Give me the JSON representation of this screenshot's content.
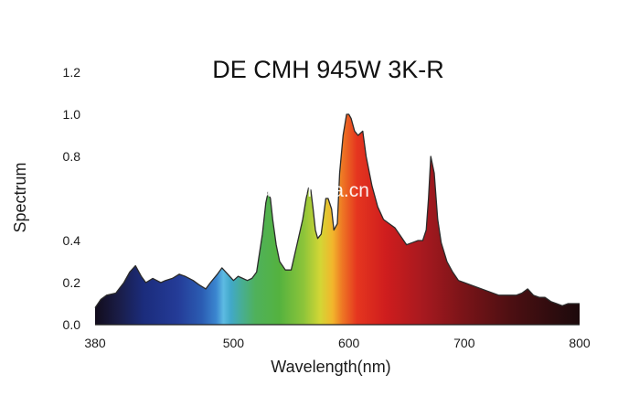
{
  "chart_data": {
    "type": "area",
    "title": "DE CMH 945W 3K-R",
    "xlabel": "Wavelength(nm)",
    "ylabel": "Spectrum",
    "xlim": [
      380,
      800
    ],
    "ylim": [
      0,
      1.2
    ],
    "xticks": [
      "380",
      "500",
      "600",
      "700",
      "800"
    ],
    "xtick_values": [
      380,
      500,
      600,
      700,
      800
    ],
    "yticks": [
      "0.0",
      "0.2",
      "0.4",
      "0.8",
      "1.0",
      "1.2"
    ],
    "ytick_values": [
      0.0,
      0.2,
      0.4,
      0.8,
      1.0,
      1.2
    ],
    "grid": false,
    "fill": "wavelength-spectrum gradient",
    "series": [
      {
        "x": [
          380,
          385,
          390,
          398,
          405,
          410,
          415,
          420,
          424,
          430,
          437,
          441,
          447,
          453,
          458,
          465,
          470,
          476,
          480,
          486,
          490,
          495,
          500,
          504,
          508,
          512,
          516,
          520,
          525,
          528,
          530,
          532,
          534,
          537,
          540,
          545,
          550,
          555,
          560,
          563,
          565,
          567,
          569,
          571,
          573,
          576,
          580,
          582,
          585,
          587,
          590,
          592,
          595,
          598,
          600,
          602,
          605,
          608,
          612,
          615,
          620,
          625,
          630,
          635,
          640,
          645,
          650,
          655,
          660,
          664,
          667,
          669,
          671,
          674,
          677,
          680,
          685,
          690,
          695,
          700,
          710,
          720,
          730,
          740,
          745,
          750,
          755,
          760,
          765,
          770,
          775,
          780,
          785,
          790,
          795,
          800
        ],
        "y": [
          0.08,
          0.12,
          0.14,
          0.15,
          0.2,
          0.25,
          0.28,
          0.23,
          0.2,
          0.22,
          0.2,
          0.21,
          0.22,
          0.24,
          0.23,
          0.21,
          0.19,
          0.17,
          0.2,
          0.24,
          0.27,
          0.24,
          0.21,
          0.23,
          0.22,
          0.21,
          0.22,
          0.25,
          0.43,
          0.58,
          0.63,
          0.6,
          0.5,
          0.38,
          0.3,
          0.26,
          0.26,
          0.38,
          0.5,
          0.6,
          0.65,
          0.64,
          0.55,
          0.45,
          0.41,
          0.43,
          0.6,
          0.6,
          0.55,
          0.45,
          0.48,
          0.72,
          0.9,
          1.0,
          1.0,
          0.98,
          0.92,
          0.9,
          0.92,
          0.8,
          0.66,
          0.56,
          0.5,
          0.48,
          0.46,
          0.42,
          0.38,
          0.39,
          0.4,
          0.4,
          0.45,
          0.6,
          0.8,
          0.72,
          0.5,
          0.39,
          0.3,
          0.25,
          0.21,
          0.2,
          0.18,
          0.16,
          0.14,
          0.14,
          0.14,
          0.15,
          0.17,
          0.14,
          0.13,
          0.13,
          0.11,
          0.1,
          0.09,
          0.1,
          0.1,
          0.1
        ]
      }
    ]
  },
  "watermark": {
    "text": "trade.china.cn"
  },
  "colors": {
    "outline": "#2b2b2b",
    "axis": "#222222"
  }
}
